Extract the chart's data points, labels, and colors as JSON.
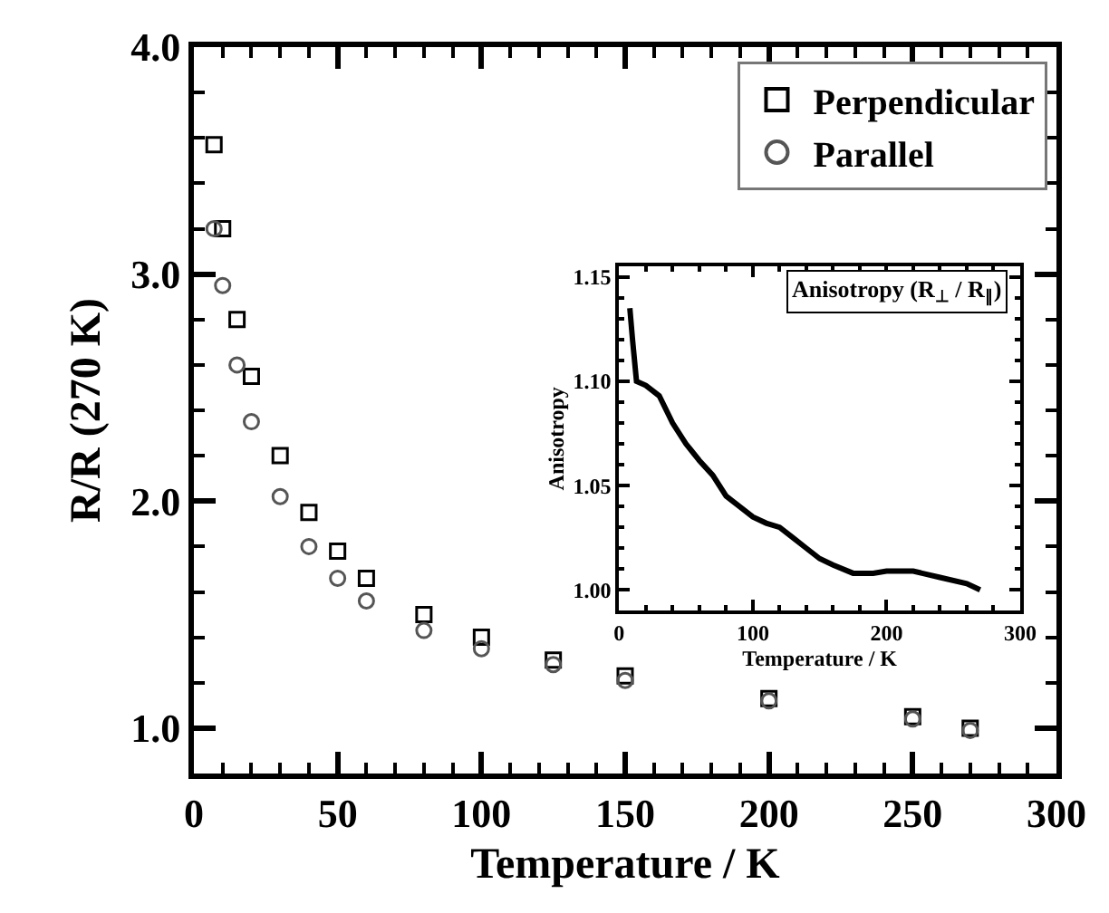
{
  "chart_data": [
    {
      "type": "scatter",
      "xlabel": "Temperature / K",
      "ylabel": "R/R (270 K)",
      "x": [
        7,
        10,
        15,
        20,
        30,
        40,
        50,
        60,
        80,
        100,
        125,
        150,
        200,
        250,
        270
      ],
      "series": [
        {
          "name": "Perpendicular",
          "color": "#000000",
          "marker": "square",
          "values": [
            3.57,
            3.2,
            2.8,
            2.55,
            2.2,
            1.95,
            1.78,
            1.66,
            1.5,
            1.4,
            1.3,
            1.23,
            1.13,
            1.05,
            1.0
          ]
        },
        {
          "name": "Parallel",
          "color": "#555555",
          "marker": "circle",
          "values": [
            3.2,
            2.95,
            2.6,
            2.35,
            2.02,
            1.8,
            1.66,
            1.56,
            1.43,
            1.35,
            1.28,
            1.21,
            1.12,
            1.04,
            0.99
          ]
        }
      ],
      "xlim": [
        0,
        300
      ],
      "xticks": [
        0,
        50,
        100,
        150,
        200,
        250,
        300
      ],
      "ylim": [
        0.8,
        4.0
      ],
      "yticks": [
        {
          "value": 1,
          "label": "1.0"
        },
        {
          "value": 2,
          "label": "2.0"
        },
        {
          "value": 3,
          "label": "3.0"
        },
        {
          "value": 4,
          "label": "4.0"
        }
      ],
      "legend": "top right"
    },
    {
      "type": "line",
      "title": "Anisotropy (R$_{⊥}$ / R$_{∥}$)",
      "xlabel": "Temperature / K",
      "ylabel": "Anisotropy",
      "color": "#000000",
      "x": [
        8,
        10,
        13,
        20,
        30,
        40,
        50,
        60,
        70,
        80,
        90,
        100,
        110,
        120,
        130,
        140,
        150,
        160,
        175,
        190,
        200,
        220,
        240,
        260,
        270
      ],
      "values": [
        1.135,
        1.12,
        1.1,
        1.098,
        1.093,
        1.08,
        1.07,
        1.062,
        1.055,
        1.045,
        1.04,
        1.035,
        1.032,
        1.03,
        1.025,
        1.02,
        1.015,
        1.012,
        1.008,
        1.008,
        1.009,
        1.009,
        1.006,
        1.003,
        1.0
      ],
      "xlim": [
        0,
        300
      ],
      "xticks": [
        0,
        100,
        200,
        300
      ],
      "ylim": [
        0.99,
        1.155
      ],
      "yticks": [
        {
          "value": 1,
          "label": "1.00"
        },
        {
          "value": 1.05,
          "label": "1.05"
        },
        {
          "value": 1.1,
          "label": "1.10"
        },
        {
          "value": 1.15,
          "label": "1.15"
        }
      ]
    }
  ]
}
